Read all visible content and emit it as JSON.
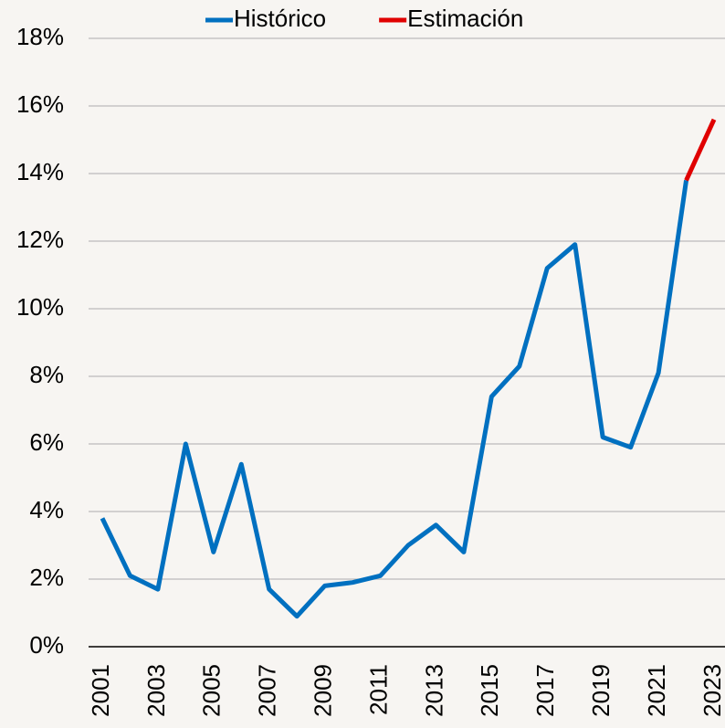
{
  "chart_data": {
    "type": "line",
    "categories": [
      "2001",
      null,
      "2003",
      null,
      "2005",
      null,
      "2007",
      null,
      "2009",
      null,
      "2011",
      null,
      "2013",
      null,
      "2015",
      null,
      "2017",
      null,
      "2019",
      null,
      "2021",
      null,
      "2023"
    ],
    "series": [
      {
        "name": "Histórico",
        "color": "#0070c0",
        "values": [
          3.8,
          2.1,
          1.7,
          6.0,
          2.8,
          5.4,
          1.7,
          0.9,
          1.8,
          1.9,
          2.1,
          3.0,
          3.6,
          2.8,
          7.4,
          8.3,
          11.2,
          11.9,
          6.2,
          5.9,
          8.1,
          13.8,
          null
        ]
      },
      {
        "name": "Estimación",
        "color": "#e00000",
        "values": [
          null,
          null,
          null,
          null,
          null,
          null,
          null,
          null,
          null,
          null,
          null,
          null,
          null,
          null,
          null,
          null,
          null,
          null,
          null,
          null,
          null,
          13.8,
          15.6
        ]
      }
    ],
    "ylim": [
      0,
      18
    ],
    "yticks": [
      {
        "value": 0,
        "label": "0%"
      },
      {
        "value": 2,
        "label": "2%"
      },
      {
        "value": 4,
        "label": "4%"
      },
      {
        "value": 6,
        "label": "6%"
      },
      {
        "value": 8,
        "label": "8%"
      },
      {
        "value": 10,
        "label": "10%"
      },
      {
        "value": 12,
        "label": "12%"
      },
      {
        "value": 14,
        "label": "14%"
      },
      {
        "value": 16,
        "label": "16%"
      },
      {
        "value": 18,
        "label": "18%"
      }
    ],
    "grid": true,
    "legend": "top"
  }
}
